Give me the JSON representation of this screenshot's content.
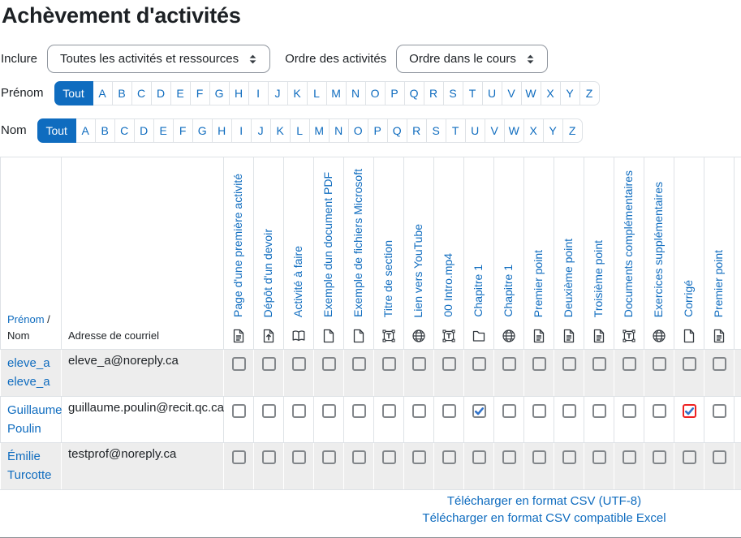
{
  "page": {
    "title": "Achèvement d'activités"
  },
  "filters": {
    "include_label": "Inclure",
    "include_value": "Toutes les activités et ressources",
    "order_label": "Ordre des activités",
    "order_value": "Ordre dans le cours"
  },
  "name_filters": {
    "firstname_label": "Prénom",
    "lastname_label": "Nom",
    "all_label": "Tout",
    "letters": [
      "A",
      "B",
      "C",
      "D",
      "E",
      "F",
      "G",
      "H",
      "I",
      "J",
      "K",
      "L",
      "M",
      "N",
      "O",
      "P",
      "Q",
      "R",
      "S",
      "T",
      "U",
      "V",
      "W",
      "X",
      "Y",
      "Z"
    ]
  },
  "table": {
    "name_header": {
      "firstname": "Prénom",
      "separator": " / ",
      "lastname": "Nom"
    },
    "email_header": "Adresse de courriel",
    "activities": [
      {
        "label": "Page d'une première activité",
        "icon": "page-icon"
      },
      {
        "label": "Dépôt d'un devoir",
        "icon": "assignment-icon"
      },
      {
        "label": "Activité à faire",
        "icon": "book-icon"
      },
      {
        "label": "Exemple dun document PDF",
        "icon": "file-icon"
      },
      {
        "label": "Exemple de fichiers Microsoft",
        "icon": "file-icon"
      },
      {
        "label": "Titre de section",
        "icon": "label-icon"
      },
      {
        "label": "Lien vers YouTube",
        "icon": "globe-icon"
      },
      {
        "label": "00 Intro.mp4",
        "icon": "label-icon"
      },
      {
        "label": "Chapitre 1",
        "icon": "folder-icon"
      },
      {
        "label": "Chapitre 1",
        "icon": "globe-icon"
      },
      {
        "label": "Premier point",
        "icon": "page-icon"
      },
      {
        "label": "Deuxième point",
        "icon": "page-icon"
      },
      {
        "label": "Troisième point",
        "icon": "page-icon"
      },
      {
        "label": "Documents complémentaires",
        "icon": "label-icon"
      },
      {
        "label": "Exercices supplémentaires",
        "icon": "globe-icon"
      },
      {
        "label": "Corrigé",
        "icon": "file-icon"
      },
      {
        "label": "Premier point",
        "icon": "page-icon"
      }
    ],
    "rows": [
      {
        "firstname": "eleve_a",
        "lastname": "eleve_a",
        "email": "eleve_a@noreply.ca",
        "completion": [
          "none",
          "none",
          "none",
          "none",
          "none",
          "none",
          "none",
          "none",
          "none",
          "none",
          "none",
          "none",
          "none",
          "none",
          "none",
          "none",
          "none"
        ]
      },
      {
        "firstname": "Guillaume",
        "lastname": "Poulin",
        "email": "guillaume.poulin@recit.qc.ca",
        "completion": [
          "none",
          "none",
          "none",
          "none",
          "none",
          "none",
          "none",
          "none",
          "checked",
          "none",
          "none",
          "none",
          "none",
          "none",
          "none",
          "override-checked",
          "none"
        ]
      },
      {
        "firstname": "Émilie",
        "lastname": "Turcotte",
        "email": "testprof@noreply.ca",
        "completion": [
          "none",
          "none",
          "none",
          "none",
          "none",
          "none",
          "none",
          "none",
          "none",
          "none",
          "none",
          "none",
          "none",
          "none",
          "none",
          "none",
          "none"
        ]
      }
    ]
  },
  "footer": {
    "csv_utf8": "Télécharger en format CSV (UTF-8)",
    "csv_excel": "Télécharger en format CSV compatible Excel"
  },
  "colors": {
    "accent_blue": "#0f6cbf",
    "check_blue": "#3273c9",
    "override_red": "#ee2222",
    "row_stripe": "#ededed",
    "border_light": "#dee2e6",
    "text": "#1d2125"
  }
}
